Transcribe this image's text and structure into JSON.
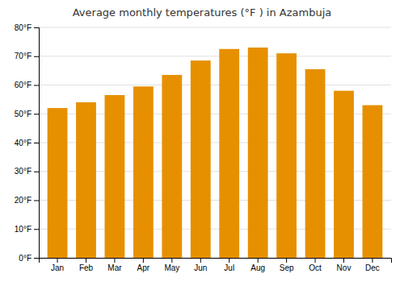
{
  "chart_data": {
    "type": "bar",
    "title": "Average monthly temperatures (°F ) in Azambuja",
    "categories": [
      "Jan",
      "Feb",
      "Mar",
      "Apr",
      "May",
      "Jun",
      "Jul",
      "Aug",
      "Sep",
      "Oct",
      "Nov",
      "Dec"
    ],
    "values": [
      52,
      54,
      56.5,
      59.5,
      63.5,
      68.5,
      72.5,
      73,
      71,
      65.5,
      58,
      53
    ],
    "color": "#E69000",
    "ylim": [
      0,
      80
    ],
    "yticks": [
      {
        "value": 0,
        "label": "0°F"
      },
      {
        "value": 10,
        "label": "10°F"
      },
      {
        "value": 20,
        "label": "20°F"
      },
      {
        "value": 30,
        "label": "30°F"
      },
      {
        "value": 40,
        "label": "40°F"
      },
      {
        "value": 50,
        "label": "50°F"
      },
      {
        "value": 60,
        "label": "60°F"
      },
      {
        "value": 70,
        "label": "70°F"
      },
      {
        "value": 80,
        "label": "80°F"
      }
    ],
    "grid": true
  }
}
